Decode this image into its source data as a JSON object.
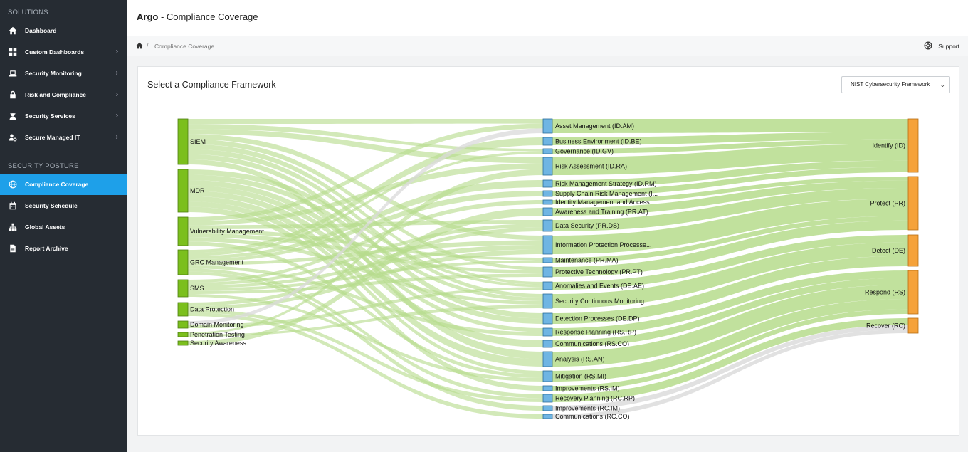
{
  "app": {
    "brand": "Argo",
    "page_title": " - Compliance Coverage"
  },
  "sidebar": {
    "sections": [
      {
        "title": "SOLUTIONS",
        "items": [
          {
            "label": "Dashboard",
            "icon": "home-icon",
            "chevron": false
          },
          {
            "label": "Custom Dashboards",
            "icon": "grid-icon",
            "chevron": true
          },
          {
            "label": "Security Monitoring",
            "icon": "laptop-icon",
            "chevron": true
          },
          {
            "label": "Risk and Compliance",
            "icon": "lock-icon",
            "chevron": true
          },
          {
            "label": "Security Services",
            "icon": "user-secret-icon",
            "chevron": true
          },
          {
            "label": "Secure Managed IT",
            "icon": "user-gear-icon",
            "chevron": true
          }
        ]
      },
      {
        "title": "SECURITY POSTURE",
        "items": [
          {
            "label": "Compliance Coverage",
            "icon": "globe-icon",
            "chevron": false,
            "active": true
          },
          {
            "label": "Security Schedule",
            "icon": "calendar-icon",
            "chevron": false
          },
          {
            "label": "Global Assets",
            "icon": "sitemap-icon",
            "chevron": false
          },
          {
            "label": "Report Archive",
            "icon": "file-icon",
            "chevron": false
          }
        ]
      }
    ]
  },
  "breadcrumb": {
    "home_icon": "home-icon",
    "separator": "/",
    "current": "Compliance Coverage"
  },
  "support": {
    "icon": "lifebuoy-icon",
    "label": "Support"
  },
  "panel": {
    "title": "Select a Compliance Framework",
    "framework_select": {
      "value": "NIST Cybersecurity Framework",
      "icon": "chevron-down-icon"
    }
  },
  "colors": {
    "sidebar_bg": "#262c33",
    "active": "#1ea0e9",
    "service_node": "#7bbf1d",
    "category_node": "#6fb5e3",
    "function_node": "#f5a23a",
    "link": "#b6dc8c",
    "link_gray": "#d9d9d9"
  },
  "chart_data": {
    "type": "sankey",
    "services": [
      "SIEM",
      "MDR",
      "Vulnerability Management",
      "GRC Management",
      "SMS",
      "Data Protection",
      "Domain Monitoring",
      "Penetration Testing",
      "Security Awareness"
    ],
    "categories": [
      "Asset Management (ID.AM)",
      "Business Environment (ID.BE)",
      "Governance (ID.GV)",
      "Risk Assessment (ID.RA)",
      "Risk Management Strategy (ID.RM)",
      "Supply Chain Risk Management (I...",
      "Identity Management and Access ...",
      "Awareness and Training (PR.AT)",
      "Data Security (PR.DS)",
      "Information Protection Processe...",
      "Maintenance (PR.MA)",
      "Protective Technology (PR.PT)",
      "Anomalies and Events (DE.AE)",
      "Security Continuous Monitoring ...",
      "Detection Processes (DE.DP)",
      "Response Planning (RS.RP)",
      "Communications (RS.CO)",
      "Analysis (RS.AN)",
      "Mitigation (RS.MI)",
      "Improvements (RS.IM)",
      "Recovery Planning (RC.RP)",
      "Improvements (RC.IM)",
      "Communications (RC.CO)"
    ],
    "functions": [
      "Identify (ID)",
      "Protect (PR)",
      "Detect (DE)",
      "Respond (RS)",
      "Recover (RC)"
    ]
  }
}
